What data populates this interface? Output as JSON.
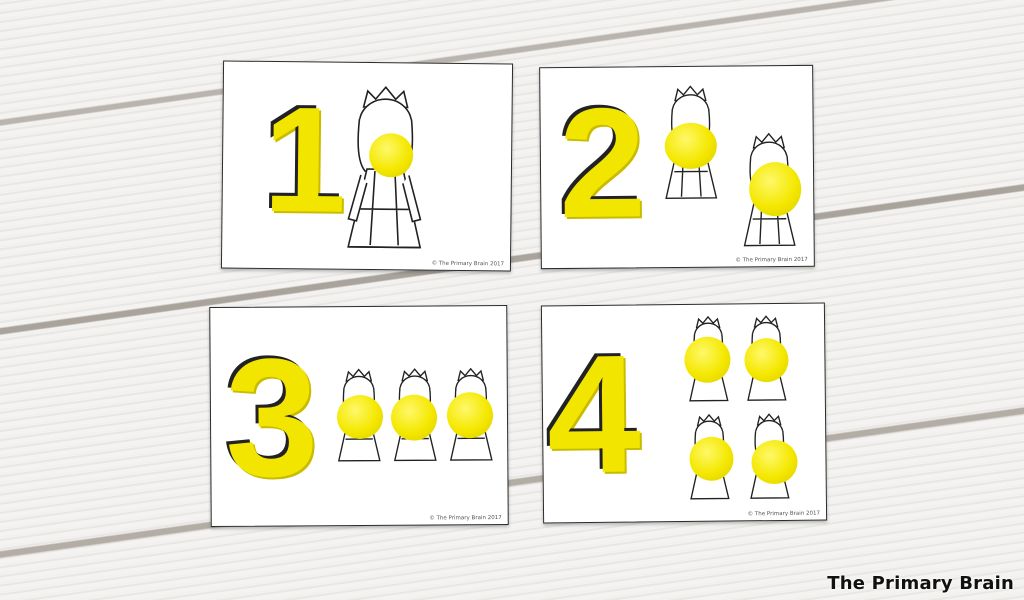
{
  "cards": [
    {
      "numeral": "1",
      "count": 1,
      "credit": "© The Primary Brain 2017"
    },
    {
      "numeral": "2",
      "count": 2,
      "credit": "© The Primary Brain 2017"
    },
    {
      "numeral": "3",
      "count": 3,
      "credit": "© The Primary Brain 2017"
    },
    {
      "numeral": "4",
      "count": 4,
      "credit": "© The Primary Brain 2017"
    }
  ],
  "watermark": "The Primary Brain",
  "colors": {
    "playdough": "#f4e800",
    "wood": "#eeedeb",
    "card": "#ffffff"
  },
  "icons": {
    "figure": "princess-icon"
  }
}
